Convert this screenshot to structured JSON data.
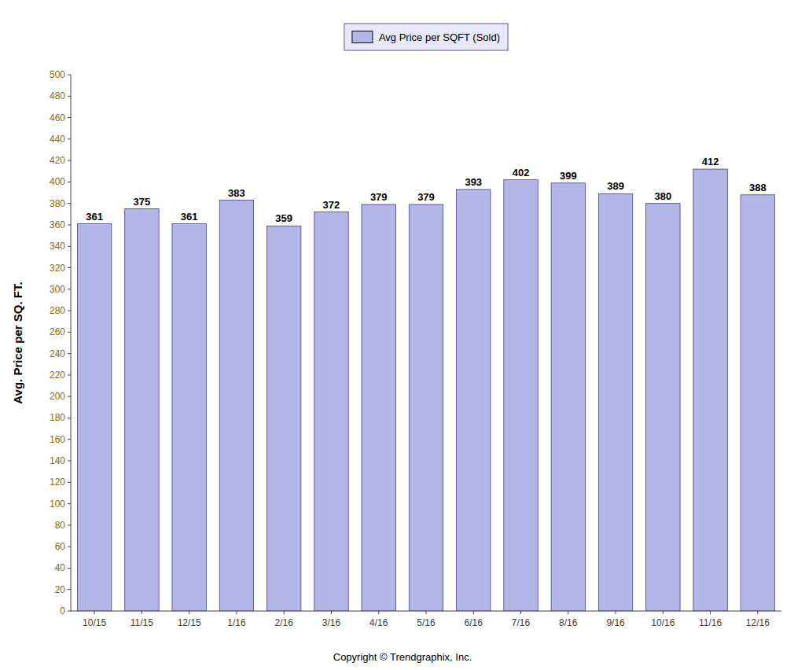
{
  "chart_data": {
    "type": "bar",
    "categories": [
      "10/15",
      "11/15",
      "12/15",
      "1/16",
      "2/16",
      "3/16",
      "4/16",
      "5/16",
      "6/16",
      "7/16",
      "8/16",
      "9/16",
      "10/16",
      "11/16",
      "12/16"
    ],
    "series": [
      {
        "name": "Avg Price per SQFT (Sold)",
        "color": "#b3b7e8",
        "values": [
          361,
          375,
          361,
          383,
          359,
          372,
          379,
          379,
          393,
          402,
          399,
          389,
          380,
          412,
          388
        ]
      }
    ],
    "ylabel": "Avg. Price per SQ. FT.",
    "annotations": [
      "Copyright © Trendgraphix, Inc."
    ],
    "ylim": [
      0,
      500
    ],
    "yticks": [
      0,
      20,
      40,
      60,
      80,
      100,
      120,
      140,
      160,
      180,
      200,
      220,
      240,
      260,
      280,
      300,
      320,
      340,
      360,
      380,
      400,
      420,
      440,
      460,
      480,
      500
    ],
    "grid": false,
    "legend": "top",
    "data_labels": true
  }
}
